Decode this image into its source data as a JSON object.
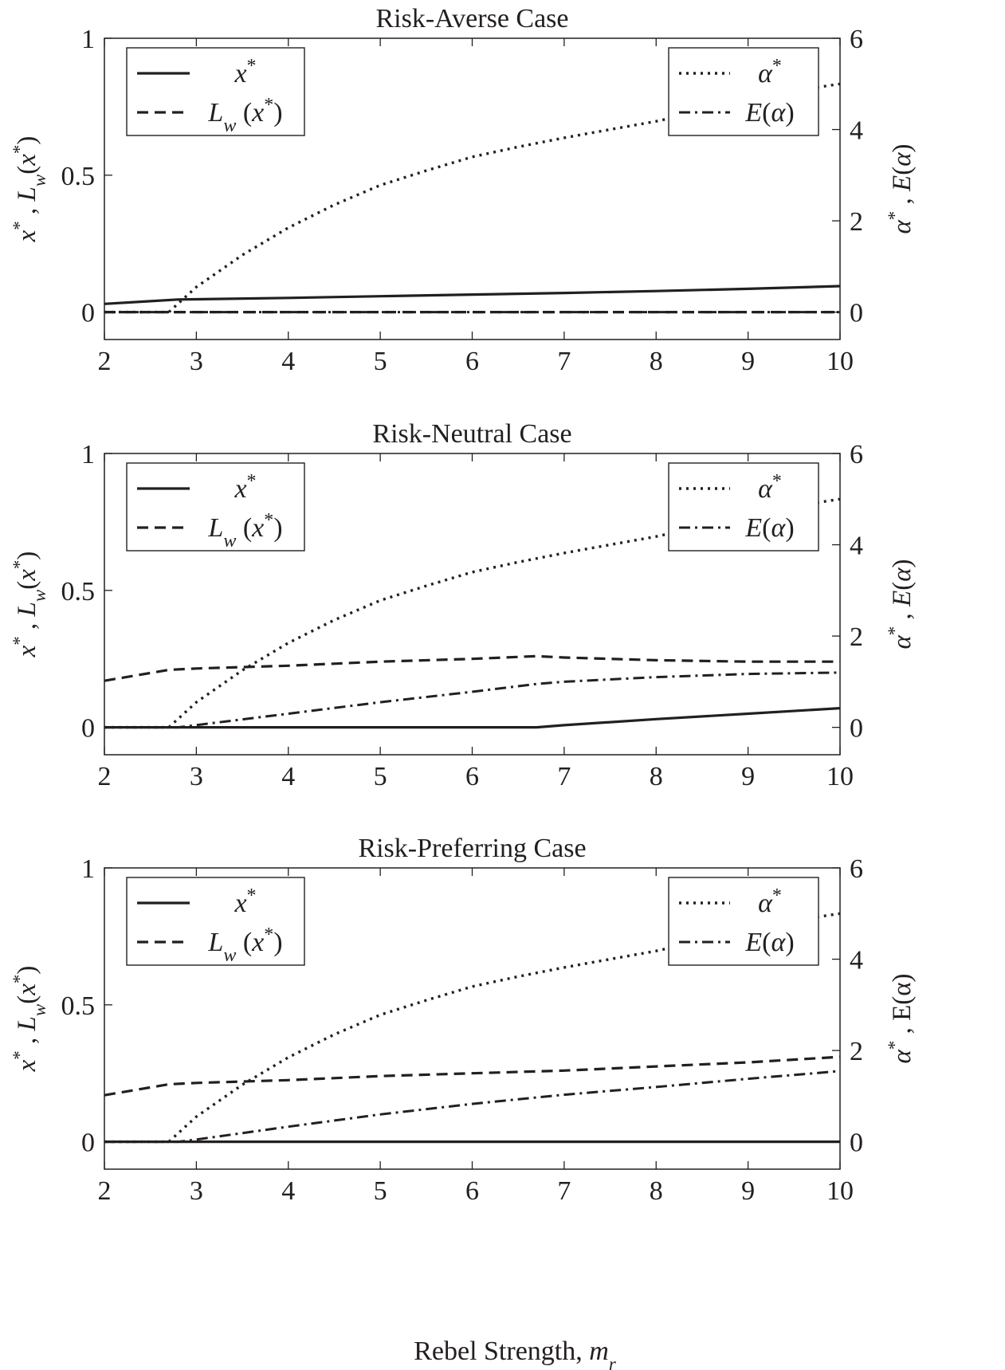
{
  "figure": {
    "xlabel": "Rebel Strength, ",
    "xlabel_symbol": "m",
    "xlabel_subscript": "r"
  },
  "chart_data": [
    {
      "type": "line",
      "title": "Risk-Averse Case",
      "ylabel_left": "x*, Lw(x*)",
      "ylabel_right": "α*, E(α)",
      "xlim": [
        2,
        10
      ],
      "ylim_left": [
        -0.1,
        1
      ],
      "ylim_right": [
        -0.6,
        6
      ],
      "x_ticks": [
        2,
        3,
        4,
        5,
        6,
        7,
        8,
        9,
        10
      ],
      "y_ticks_left": [
        0,
        0.5,
        1
      ],
      "y_ticks_right": [
        0,
        2,
        4,
        6
      ],
      "legend_left": [
        "x*",
        "Lw(x*)"
      ],
      "legend_right": [
        "α*",
        "E(α)"
      ],
      "legend_placement": [
        "top-left",
        "top-right"
      ],
      "grid": false,
      "series": [
        {
          "name": "x*",
          "axis": "left",
          "style": "solid",
          "x": [
            2,
            2.5,
            2.8,
            3,
            4,
            5,
            6,
            7,
            8,
            9,
            10
          ],
          "y": [
            0.03,
            0.04,
            0.046,
            0.047,
            0.052,
            0.058,
            0.064,
            0.07,
            0.077,
            0.085,
            0.095
          ]
        },
        {
          "name": "Lw(x*)",
          "axis": "left",
          "style": "dashed",
          "x": [
            2,
            10
          ],
          "y": [
            0,
            0
          ]
        },
        {
          "name": "α*",
          "axis": "right",
          "style": "dotted",
          "x": [
            2,
            2.7,
            3,
            3.5,
            4,
            4.5,
            5,
            5.5,
            6,
            6.5,
            7,
            7.5,
            8,
            8.5,
            9,
            9.5,
            10
          ],
          "y": [
            0,
            0,
            0.55,
            1.25,
            1.85,
            2.35,
            2.78,
            3.1,
            3.4,
            3.62,
            3.82,
            4.0,
            4.18,
            4.4,
            4.62,
            4.85,
            5.0
          ]
        },
        {
          "name": "E(α)",
          "axis": "right",
          "style": "dashdot",
          "x": [
            2,
            10
          ],
          "y": [
            0,
            0
          ]
        }
      ]
    },
    {
      "type": "line",
      "title": "Risk-Neutral Case",
      "ylabel_left": "x*, Lw(x*)",
      "ylabel_right": "α*, E(α)",
      "xlim": [
        2,
        10
      ],
      "ylim_left": [
        -0.1,
        1
      ],
      "ylim_right": [
        -0.6,
        6
      ],
      "x_ticks": [
        2,
        3,
        4,
        5,
        6,
        7,
        8,
        9,
        10
      ],
      "y_ticks_left": [
        0,
        0.5,
        1
      ],
      "y_ticks_right": [
        0,
        2,
        4,
        6
      ],
      "legend_left": [
        "x*",
        "Lw(x*)"
      ],
      "legend_right": [
        "α*",
        "E(α)"
      ],
      "legend_placement": [
        "top-left",
        "top-right"
      ],
      "grid": false,
      "series": [
        {
          "name": "x*",
          "axis": "left",
          "style": "solid",
          "x": [
            2,
            6.7,
            7,
            8,
            9,
            10
          ],
          "y": [
            0,
            0,
            0.008,
            0.03,
            0.05,
            0.07
          ]
        },
        {
          "name": "Lw(x*)",
          "axis": "left",
          "style": "dashed",
          "x": [
            2,
            2.7,
            3,
            4,
            5,
            6,
            6.7,
            7,
            8,
            9,
            10
          ],
          "y": [
            0.17,
            0.21,
            0.215,
            0.225,
            0.24,
            0.25,
            0.26,
            0.255,
            0.245,
            0.24,
            0.24
          ]
        },
        {
          "name": "α*",
          "axis": "right",
          "style": "dotted",
          "x": [
            2,
            2.7,
            3,
            3.5,
            4,
            4.5,
            5,
            5.5,
            6,
            6.5,
            7,
            7.5,
            8,
            8.5,
            9,
            9.5,
            10
          ],
          "y": [
            0,
            0,
            0.55,
            1.25,
            1.85,
            2.35,
            2.78,
            3.1,
            3.4,
            3.62,
            3.82,
            4.0,
            4.18,
            4.4,
            4.62,
            4.85,
            5.0
          ]
        },
        {
          "name": "E(α)",
          "axis": "right",
          "style": "dashdot",
          "x": [
            2,
            2.8,
            3,
            4,
            5,
            6,
            6.7,
            7,
            8,
            9,
            10
          ],
          "y": [
            0,
            0,
            0.05,
            0.3,
            0.55,
            0.78,
            0.95,
            1.0,
            1.1,
            1.17,
            1.2
          ]
        }
      ]
    },
    {
      "type": "line",
      "title": "Risk-Preferring Case",
      "ylabel_left": "x*, Lw(x*)",
      "ylabel_right": "α*, E(α)",
      "xlim": [
        2,
        10
      ],
      "ylim_left": [
        -0.1,
        1
      ],
      "ylim_right": [
        -0.6,
        6
      ],
      "x_ticks": [
        2,
        3,
        4,
        5,
        6,
        7,
        8,
        9,
        10
      ],
      "y_ticks_left": [
        0,
        0.5,
        1
      ],
      "y_ticks_right": [
        0,
        2,
        4,
        6
      ],
      "legend_left": [
        "x*",
        "Lw(x*)"
      ],
      "legend_right": [
        "α*",
        "E(α)"
      ],
      "legend_placement": [
        "top-left",
        "top-right"
      ],
      "grid": false,
      "series": [
        {
          "name": "x*",
          "axis": "left",
          "style": "solid",
          "x": [
            2,
            10
          ],
          "y": [
            0,
            0
          ]
        },
        {
          "name": "Lw(x*)",
          "axis": "left",
          "style": "dashed",
          "x": [
            2,
            2.7,
            3,
            4,
            5,
            6,
            7,
            8,
            9,
            10
          ],
          "y": [
            0.17,
            0.21,
            0.215,
            0.225,
            0.24,
            0.25,
            0.26,
            0.275,
            0.29,
            0.31
          ]
        },
        {
          "name": "α*",
          "axis": "right",
          "style": "dotted",
          "x": [
            2,
            2.7,
            3,
            3.5,
            4,
            4.5,
            5,
            5.5,
            6,
            6.5,
            7,
            7.5,
            8,
            8.5,
            9,
            9.5,
            10
          ],
          "y": [
            0,
            0,
            0.55,
            1.25,
            1.85,
            2.35,
            2.78,
            3.1,
            3.4,
            3.62,
            3.82,
            4.0,
            4.18,
            4.4,
            4.62,
            4.85,
            5.0
          ]
        },
        {
          "name": "E(α)",
          "axis": "right",
          "style": "dashdot",
          "x": [
            2,
            2.8,
            3,
            4,
            5,
            6,
            7,
            8,
            9,
            10
          ],
          "y": [
            0,
            0,
            0.05,
            0.33,
            0.6,
            0.83,
            1.03,
            1.2,
            1.38,
            1.55
          ]
        }
      ]
    }
  ]
}
